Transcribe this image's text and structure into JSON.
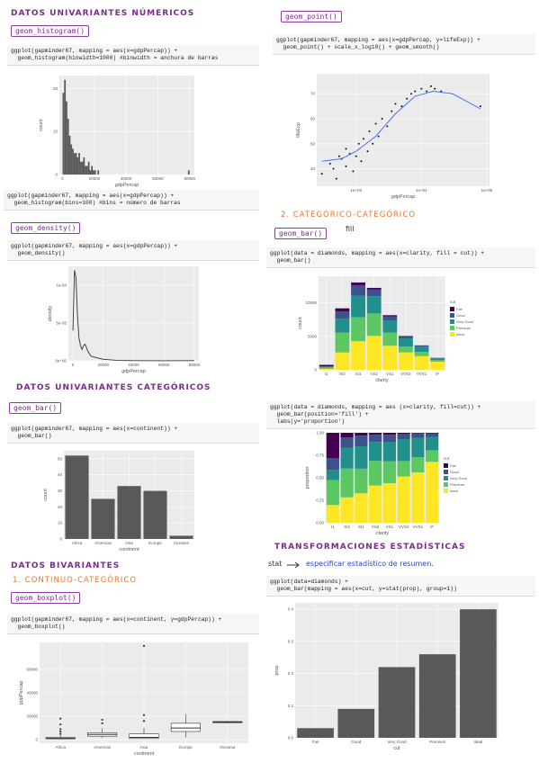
{
  "text": {
    "h_num": "DATOS UNIVARIANTES NÚMERICOS",
    "tag_hist": "geom_histogram()",
    "code_hist1": "ggplot(gapminder67, mapping = aes(x=gdpPercap)) +\n  geom_histogram(binwidth=1000) #binwidth = anchura de barras",
    "code_hist2": "ggplot(gapminder67, mapping = aes(x=gdpPercap)) +\n  geom_histogram(bins=100) #bins = número de barras",
    "tag_density": "geom_density()",
    "code_density": "ggplot(gapminder67, mapping = aes(x=gdpPercap)) +\n  geom_density()",
    "h_cat": "DATOS UNIVARIANTES CATEGÓRICOS",
    "tag_bar1": "geom_bar()",
    "code_bar1": "ggplot(gapminder67, mapping = aes(x=continent)) +\n  geom_bar()",
    "h_biv": "DATOS BIVARIANTES",
    "h_cc": "1. CONTINUO-CATEGÓRICO",
    "tag_box": "geom_boxplot()",
    "code_box": "ggplot(gapminder67, mapping = aes(x=continent, y=gdpPercap)) +\n  geom_boxplot()",
    "tag_point": "geom_point()",
    "code_point": "ggplot(gapminder67, mapping = aes(x=gdpPercap, y=lifeExp)) +\n  geom_point() + scale_x_log10() + geom_smooth()",
    "h_catcat": "2. CATEGÓRICO-CATEGÓRICO",
    "tag_bar2": "geom_bar()",
    "fill_note": "fill",
    "code_bar2": "ggplot(data = diamonds, mapping = aes(x=clarity, fill = cut)) +\n  geom_bar()",
    "code_fill": "ggplot(data = diamonds, mapping = aes (x=clarity, fill=cut)) +\n  geom_bar(position='fill') +\n  labs(y='proportion')",
    "h_stat": "TRANSFORMACIONES ESTADÍSTICAS",
    "stat_word": "stat",
    "stat_desc": "especificar estadístico de resumen.",
    "code_stat": "ggplot(data=diamonds) +\n  geom_bar(mapping = aes(x=cut, y=stat(prop), group=1))"
  },
  "chart_data": [
    {
      "type": "histogram",
      "xlabel": "gdpPercap",
      "ylabel": "count",
      "color": "#595959",
      "bins": [
        0,
        1000,
        2000,
        3000,
        4000,
        5000,
        6000,
        7000,
        8000,
        9000,
        10000,
        11000,
        12000,
        13000,
        14000,
        15000,
        16000,
        17000,
        18000,
        19000,
        20000,
        21000,
        22000,
        23000,
        24000,
        25000,
        26000,
        27000,
        28000,
        29000,
        30000,
        31000,
        32000,
        33000,
        34000,
        35000,
        36000,
        37000,
        38000,
        39000,
        40000,
        41000,
        42000,
        43000,
        44000,
        45000,
        46000,
        47000,
        48000,
        49000,
        50000,
        51000,
        52000,
        53000,
        54000,
        55000,
        56000,
        57000,
        58000,
        59000,
        60000,
        61000,
        62000,
        63000,
        64000,
        65000,
        66000,
        67000,
        68000,
        69000,
        70000,
        71000,
        72000,
        73000,
        74000,
        75000,
        76000,
        77000,
        78000,
        79000,
        80000
      ],
      "values": [
        19,
        22,
        17,
        13,
        9,
        7,
        6,
        5,
        5,
        4,
        5,
        3,
        3,
        4,
        2,
        2,
        3,
        1,
        2,
        1,
        1,
        0,
        1,
        0,
        0,
        0,
        0,
        0,
        0,
        0,
        0,
        0,
        0,
        0,
        0,
        0,
        0,
        0,
        0,
        0,
        0,
        0,
        0,
        0,
        0,
        0,
        0,
        0,
        0,
        0,
        0,
        0,
        0,
        0,
        0,
        0,
        0,
        0,
        0,
        0,
        0,
        0,
        0,
        0,
        0,
        0,
        0,
        0,
        0,
        0,
        0,
        0,
        0,
        0,
        0,
        0,
        0,
        0,
        0,
        1
      ],
      "xlim": [
        -2000,
        83000
      ],
      "xticks": [
        0,
        20000,
        40000,
        60000,
        80000
      ],
      "ylim": [
        0,
        23
      ],
      "yticks": [
        0,
        10,
        20
      ]
    },
    {
      "type": "density",
      "xlabel": "gdpPercap",
      "ylabel": "density",
      "color": "#333333",
      "x": [
        0,
        1000,
        2000,
        3000,
        4000,
        5000,
        6000,
        7000,
        8000,
        10000,
        12000,
        14000,
        16000,
        20000,
        30000,
        40000,
        60000,
        80000
      ],
      "values": [
        4e-05,
        0.00012,
        0.00011,
        6e-05,
        3e-05,
        2e-05,
        1.5e-05,
        2e-05,
        2.2e-05,
        1.2e-05,
        6e-06,
        5e-06,
        4e-06,
        2e-06,
        5e-07,
        2e-07,
        1e-07,
        2e-07
      ],
      "xlim": [
        -3000,
        83000
      ],
      "xticks": [
        0,
        20000,
        40000,
        60000,
        80000
      ],
      "ylim": [
        0,
        0.000125
      ],
      "yticks": [
        {
          "value": 0,
          "label": "0e+00"
        },
        {
          "value": 5e-05,
          "label": "5e-05"
        },
        {
          "value": 0.0001,
          "label": "1e-04"
        }
      ]
    },
    {
      "type": "bar",
      "xlabel": "continent",
      "ylabel": "count",
      "color": "#595959",
      "categories": [
        "Africa",
        "Americas",
        "Asia",
        "Europe",
        "Oceania"
      ],
      "values": [
        52,
        25,
        33,
        30,
        2
      ],
      "ylim": [
        0,
        55
      ],
      "yticks": [
        0,
        10,
        20,
        30,
        40,
        50
      ]
    },
    {
      "type": "boxplot",
      "xlabel": "continent",
      "ylabel": "gdpPercap",
      "categories": [
        "Africa",
        "Americas",
        "Asia",
        "Europe",
        "Oceania"
      ],
      "boxes": [
        {
          "low": 300,
          "q1": 700,
          "median": 1100,
          "q3": 2000,
          "high": 4000,
          "outliers": [
            5000,
            7000,
            9000,
            13000,
            18000
          ]
        },
        {
          "low": 1500,
          "q1": 3000,
          "median": 4500,
          "q3": 6000,
          "high": 10000,
          "outliers": [
            14000,
            17000
          ]
        },
        {
          "low": 300,
          "q1": 1000,
          "median": 2000,
          "q3": 5000,
          "high": 10000,
          "outliers": [
            16000,
            21000,
            80000
          ]
        },
        {
          "low": 2000,
          "q1": 7000,
          "median": 10000,
          "q3": 14000,
          "high": 22000,
          "outliers": []
        },
        {
          "low": 14000,
          "q1": 14500,
          "median": 15000,
          "q3": 15500,
          "high": 16000,
          "outliers": []
        }
      ],
      "ylim": [
        -3000,
        83000
      ],
      "yticks": [
        0,
        20000,
        40000,
        60000
      ]
    },
    {
      "type": "scatter",
      "xlabel": "gdpPercap",
      "ylabel": "lifeExp",
      "color": "#111111",
      "xscale": "log",
      "x": [
        300,
        400,
        450,
        500,
        550,
        600,
        700,
        700,
        800,
        900,
        1000,
        1100,
        1200,
        1300,
        1500,
        1600,
        1800,
        2000,
        2200,
        2500,
        3000,
        3500,
        4000,
        5000,
        6000,
        7000,
        8000,
        10000,
        12000,
        14000,
        16000,
        20000,
        80000
      ],
      "values": [
        38,
        42,
        40,
        36,
        45,
        44,
        41,
        48,
        46,
        39,
        45,
        50,
        43,
        52,
        47,
        55,
        50,
        58,
        53,
        60,
        57,
        63,
        66,
        65,
        68,
        70,
        71,
        72,
        71,
        73,
        72,
        71,
        65
      ],
      "trend": {
        "color": "#3366ff",
        "x": [
          300,
          600,
          1000,
          2000,
          4000,
          8000,
          15000,
          30000,
          80000
        ],
        "values": [
          43,
          44,
          47,
          53,
          62,
          69,
          71,
          70,
          64
        ]
      },
      "xlim": [
        250,
        110000
      ],
      "xticks": [
        {
          "value": 1000,
          "label": "1e+03"
        },
        {
          "value": 10000,
          "label": "1e+04"
        },
        {
          "value": 100000,
          "label": "1e+05"
        }
      ],
      "ylim": [
        33,
        78
      ],
      "yticks": [
        40,
        50,
        60,
        70
      ]
    },
    {
      "type": "stacked_bar",
      "xlabel": "clarity",
      "ylabel": "count",
      "legend_title": "cut",
      "legend": "right",
      "categories": [
        "I1",
        "SI2",
        "SI1",
        "VS2",
        "VS1",
        "VVS2",
        "VVS1",
        "IF"
      ],
      "series": [
        {
          "name": "Fair",
          "color": "#440154",
          "values": [
            210,
            466,
            408,
            261,
            170,
            69,
            17,
            9
          ]
        },
        {
          "name": "Good",
          "color": "#3b528b",
          "values": [
            96,
            1081,
            1560,
            978,
            648,
            286,
            186,
            71
          ]
        },
        {
          "name": "Very Good",
          "color": "#21908d",
          "values": [
            84,
            2100,
            3240,
            2591,
            1775,
            1235,
            789,
            268
          ]
        },
        {
          "name": "Premium",
          "color": "#5dc863",
          "values": [
            205,
            2949,
            3575,
            3357,
            1989,
            870,
            616,
            230
          ]
        },
        {
          "name": "Ideal",
          "color": "#fde725",
          "values": [
            146,
            2598,
            4282,
            5071,
            3589,
            2606,
            2047,
            1212
          ]
        }
      ],
      "ylim": [
        0,
        14000
      ],
      "yticks": [
        0,
        5000,
        10000
      ]
    },
    {
      "type": "fill_bar",
      "xlabel": "clarity",
      "ylabel": "proportion",
      "legend_title": "cut",
      "legend": "right",
      "categories": [
        "I1",
        "SI2",
        "SI1",
        "VS2",
        "VS1",
        "VVS2",
        "VVS1",
        "IF"
      ],
      "series": [
        {
          "name": "Fair",
          "color": "#440154",
          "values": [
            210,
            466,
            408,
            261,
            170,
            69,
            17,
            9
          ]
        },
        {
          "name": "Good",
          "color": "#3b528b",
          "values": [
            96,
            1081,
            1560,
            978,
            648,
            286,
            186,
            71
          ]
        },
        {
          "name": "Very Good",
          "color": "#21908d",
          "values": [
            84,
            2100,
            3240,
            2591,
            1775,
            1235,
            789,
            268
          ]
        },
        {
          "name": "Premium",
          "color": "#5dc863",
          "values": [
            205,
            2949,
            3575,
            3357,
            1989,
            870,
            616,
            230
          ]
        },
        {
          "name": "Ideal",
          "color": "#fde725",
          "values": [
            146,
            2598,
            4282,
            5071,
            3589,
            2606,
            2047,
            1212
          ]
        }
      ],
      "ylim": [
        0,
        1
      ],
      "yticks": [
        {
          "value": 0,
          "label": "0.00"
        },
        0.25,
        {
          "value": 0.5,
          "label": "0.50"
        },
        0.75,
        {
          "value": 1,
          "label": "1.00"
        }
      ]
    },
    {
      "type": "bar",
      "xlabel": "cut",
      "ylabel": "prop",
      "color": "#595959",
      "categories": [
        "Fair",
        "Good",
        "Very Good",
        "Premium",
        "Ideal"
      ],
      "values": [
        0.03,
        0.09,
        0.22,
        0.26,
        0.4
      ],
      "ylim": [
        0,
        0.42
      ],
      "yticks": [
        {
          "value": 0,
          "label": "0.0"
        },
        0.1,
        0.2,
        0.3,
        0.4
      ]
    }
  ]
}
